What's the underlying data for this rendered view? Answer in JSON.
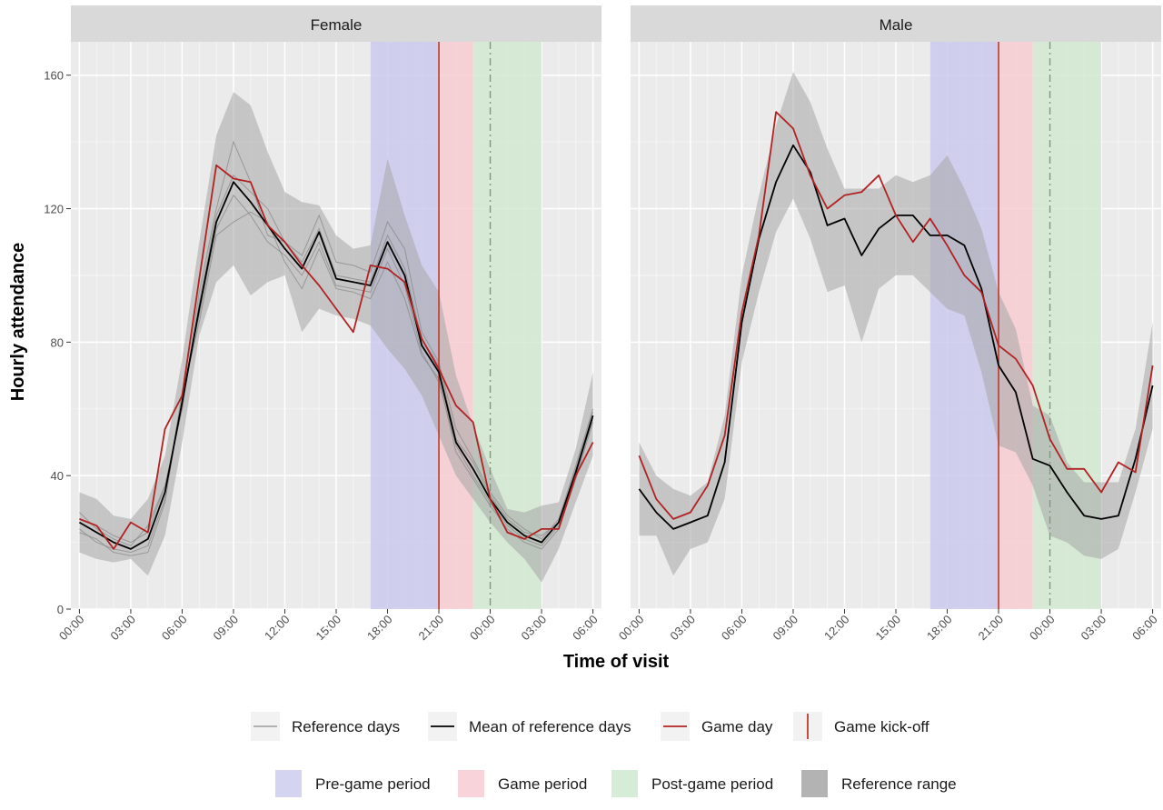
{
  "chart_data": {
    "type": "line",
    "xlabel": "Time of visit",
    "ylabel": "Hourly attendance",
    "ylim": [
      0,
      170
    ],
    "yticks": [
      0,
      40,
      80,
      120,
      160
    ],
    "xlim": [
      -0.5,
      30.5
    ],
    "xticks": [
      0,
      3,
      6,
      9,
      12,
      15,
      18,
      21,
      24,
      27,
      30
    ],
    "xtick_labels": [
      "00:00",
      "03:00",
      "06:00",
      "09:00",
      "12:00",
      "15:00",
      "18:00",
      "21:00",
      "00:00",
      "03:00",
      "06:00"
    ],
    "x": [
      0,
      1,
      2,
      3,
      4,
      5,
      6,
      7,
      8,
      9,
      10,
      11,
      12,
      13,
      14,
      15,
      16,
      17,
      18,
      19,
      20,
      21,
      22,
      23,
      24,
      25,
      26,
      27,
      28,
      29,
      30
    ],
    "kickoff": 21,
    "midnight_line": 24,
    "periods": [
      {
        "name": "Pre-game period",
        "start": 17,
        "end": 21,
        "color": "#c8c8ee"
      },
      {
        "name": "Game period",
        "start": 21,
        "end": 23,
        "color": "#f7c9cf"
      },
      {
        "name": "Post-game period",
        "start": 23,
        "end": 27,
        "color": "#cfe9cf"
      }
    ],
    "panels": [
      {
        "label": "Female",
        "series": [
          {
            "name": "Game day",
            "color": "#b22222",
            "values": [
              27,
              25,
              18,
              26,
              23,
              54,
              64,
              99,
              133,
              129,
              128,
              115,
              110,
              103,
              97,
              90,
              83,
              103,
              102,
              98,
              81,
              72,
              61,
              56,
              33,
              23,
              21,
              24,
              24,
              40,
              50
            ]
          },
          {
            "name": "Mean of reference days",
            "color": "#000000",
            "values": [
              26,
              23,
              20,
              18,
              21,
              35,
              62,
              90,
              116,
              128,
              122,
              115,
              108,
              102,
              113,
              99,
              98,
              97,
              110,
              100,
              79,
              71,
              50,
              42,
              33,
              26,
              22,
              20,
              26,
              41,
              58
            ]
          }
        ],
        "ref_lower": [
          17,
          15,
          14,
          15,
          10,
          22,
          50,
          82,
          98,
          103,
          94,
          98,
          100,
          83,
          90,
          88,
          87,
          85,
          78,
          72,
          64,
          52,
          40,
          33,
          26,
          20,
          15,
          8,
          18,
          32,
          46
        ],
        "ref_upper": [
          35,
          33,
          28,
          27,
          33,
          46,
          75,
          110,
          142,
          155,
          151,
          137,
          125,
          122,
          121,
          112,
          108,
          109,
          135,
          118,
          103,
          95,
          70,
          55,
          42,
          30,
          29,
          31,
          32,
          48,
          71
        ],
        "reference_days": [
          [
            29,
            24,
            21,
            19,
            25,
            37,
            60,
            95,
            120,
            140,
            128,
            112,
            110,
            106,
            118,
            104,
            103,
            101,
            116,
            108,
            83,
            74,
            54,
            45,
            35,
            28,
            24,
            21,
            27,
            43,
            60
          ],
          [
            23,
            21,
            17,
            16,
            17,
            32,
            64,
            86,
            112,
            116,
            119,
            116,
            104,
            96,
            108,
            96,
            95,
            93,
            104,
            93,
            76,
            69,
            47,
            39,
            31,
            24,
            20,
            18,
            24,
            39,
            56
          ],
          [
            27,
            25,
            22,
            20,
            23,
            37,
            60,
            92,
            118,
            130,
            125,
            120,
            110,
            104,
            114,
            100,
            99,
            98,
            112,
            102,
            81,
            73,
            51,
            44,
            34,
            27,
            23,
            22,
            26,
            42,
            59
          ],
          [
            24,
            20,
            18,
            17,
            19,
            33,
            65,
            88,
            114,
            124,
            118,
            110,
            106,
            100,
            110,
            97,
            96,
            95,
            108,
            97,
            77,
            68,
            49,
            40,
            32,
            25,
            21,
            19,
            25,
            40,
            57
          ]
        ]
      },
      {
        "label": "Male",
        "series": [
          {
            "name": "Game day",
            "color": "#b22222",
            "values": [
              46,
              33,
              27,
              29,
              37,
              52,
              89,
              112,
              149,
              144,
              130,
              120,
              124,
              125,
              130,
              118,
              110,
              117,
              109,
              100,
              95,
              79,
              75,
              67,
              51,
              42,
              42,
              35,
              44,
              41,
              73
            ]
          },
          {
            "name": "Mean of reference days",
            "color": "#000000",
            "values": [
              36,
              29,
              24,
              26,
              28,
              44,
              86,
              111,
              128,
              139,
              131,
              115,
              117,
              106,
              114,
              118,
              118,
              112,
              112,
              109,
              96,
              73,
              65,
              45,
              43,
              35,
              28,
              27,
              28,
              45,
              67
            ]
          }
        ],
        "ref_lower": [
          22,
          22,
          10,
          18,
          20,
          33,
          74,
          95,
          113,
          123,
          111,
          95,
          97,
          80,
          96,
          100,
          100,
          95,
          90,
          88,
          71,
          49,
          47,
          37,
          22,
          20,
          16,
          15,
          18,
          35,
          54
        ],
        "ref_upper": [
          50,
          40,
          36,
          34,
          38,
          58,
          100,
          124,
          145,
          161,
          152,
          138,
          126,
          126,
          126,
          130,
          128,
          130,
          136,
          126,
          114,
          95,
          84,
          61,
          58,
          44,
          38,
          38,
          38,
          54,
          86
        ]
      }
    ],
    "legend": {
      "lines": [
        "Reference days",
        "Mean of reference days",
        "Game day",
        "Game kick-off"
      ],
      "fills": [
        "Pre-game period",
        "Game period",
        "Post-game period",
        "Reference range"
      ]
    },
    "grid": true,
    "colors": {
      "panel_bg": "#ebebeb",
      "strip_bg": "#d9d9d9",
      "reference_range": "#a6a6a6",
      "reference_days": "#8c8c8c",
      "kickoff": "#c0392b",
      "midnight": "#7a9a7a"
    }
  }
}
